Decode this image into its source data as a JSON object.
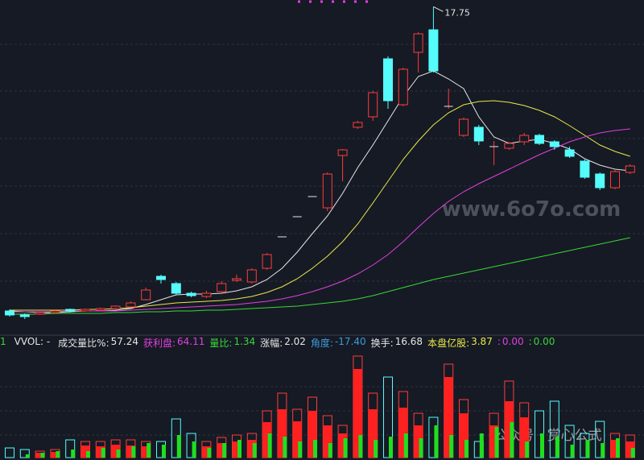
{
  "chart_data": [
    {
      "type": "candlestick",
      "ylim": [
        6,
        18
      ],
      "up_color": "#ff3c3c",
      "down_color": "#54fcfc",
      "open": [
        6.42,
        6.27,
        6.3,
        6.36,
        6.48,
        6.42,
        6.45,
        6.51,
        6.57,
        6.84,
        7.71,
        7.44,
        7.08,
        6.96,
        7.14,
        7.56,
        7.5,
        8.01,
        9.18,
        9.93,
        10.68,
        10.26,
        12.21,
        13.26,
        13.65,
        15.81,
        14.1,
        16.05,
        16.89,
        14.04,
        12.96,
        13.26,
        12.54,
        12.48,
        12.72,
        12.96,
        12.72,
        12.42,
        12.0,
        11.52,
        11.01,
        11.58
      ],
      "close": [
        6.27,
        6.21,
        6.36,
        6.42,
        6.42,
        6.48,
        6.51,
        6.6,
        6.72,
        7.2,
        7.59,
        7.08,
        6.99,
        7.08,
        7.44,
        7.62,
        7.95,
        8.52,
        9.18,
        9.93,
        10.68,
        11.52,
        12.42,
        13.44,
        14.55,
        14.25,
        15.42,
        16.74,
        15.36,
        14.04,
        13.56,
        12.75,
        12.54,
        12.66,
        12.96,
        12.66,
        12.54,
        12.18,
        11.4,
        11.01,
        11.61,
        11.82
      ],
      "high": [
        6.48,
        6.33,
        6.39,
        6.45,
        6.51,
        6.51,
        6.54,
        6.63,
        6.78,
        7.29,
        7.77,
        7.5,
        7.14,
        7.17,
        7.53,
        7.77,
        8.01,
        8.58,
        9.18,
        9.93,
        10.68,
        11.58,
        12.45,
        13.5,
        14.61,
        15.9,
        15.48,
        16.8,
        17.75,
        14.7,
        13.62,
        13.35,
        12.75,
        12.72,
        13.05,
        13.02,
        12.78,
        12.54,
        12.06,
        11.58,
        11.67,
        11.88
      ],
      "low": [
        6.21,
        6.12,
        6.27,
        6.33,
        6.36,
        6.39,
        6.42,
        6.48,
        6.54,
        6.81,
        7.44,
        7.02,
        6.93,
        6.9,
        7.08,
        7.5,
        7.44,
        7.95,
        9.18,
        9.93,
        10.68,
        10.14,
        11.25,
        13.2,
        13.5,
        13.95,
        14.04,
        15.3,
        15.3,
        13.95,
        12.9,
        12.6,
        11.85,
        12.42,
        12.6,
        12.6,
        12.42,
        12.12,
        11.34,
        10.92,
        10.95,
        11.52
      ],
      "series": [
        {
          "color": "#e6e6e6",
          "values": [
            6.42,
            6.39,
            6.36,
            6.36,
            6.39,
            6.42,
            6.42,
            6.45,
            6.51,
            6.66,
            6.84,
            7.02,
            7.05,
            7.05,
            7.08,
            7.17,
            7.32,
            7.59,
            8.01,
            8.61,
            9.3,
            9.96,
            10.8,
            11.76,
            12.6,
            13.5,
            14.4,
            15.15,
            15.36,
            15.06,
            14.7,
            13.65,
            12.9,
            12.66,
            12.75,
            12.81,
            12.66,
            12.45,
            12.09,
            11.85,
            11.7,
            11.64
          ]
        },
        {
          "color": "#e8e84a",
          "values": [
            6.45,
            6.45,
            6.45,
            6.45,
            6.45,
            6.48,
            6.48,
            6.51,
            6.54,
            6.6,
            6.66,
            6.72,
            6.75,
            6.78,
            6.81,
            6.87,
            6.96,
            7.11,
            7.32,
            7.62,
            8.01,
            8.46,
            9.0,
            9.66,
            10.44,
            11.25,
            12.06,
            12.75,
            13.35,
            13.8,
            14.1,
            14.22,
            14.25,
            14.19,
            14.07,
            13.89,
            13.65,
            13.32,
            12.96,
            12.6,
            12.36,
            12.18
          ]
        },
        {
          "color": "#e040e0",
          "values": [
            6.39,
            6.39,
            6.39,
            6.39,
            6.42,
            6.42,
            6.42,
            6.42,
            6.45,
            6.48,
            6.51,
            6.54,
            6.57,
            6.6,
            6.63,
            6.66,
            6.72,
            6.78,
            6.87,
            6.99,
            7.14,
            7.32,
            7.53,
            7.8,
            8.13,
            8.52,
            9.0,
            9.54,
            10.05,
            10.5,
            10.86,
            11.16,
            11.43,
            11.7,
            11.97,
            12.24,
            12.48,
            12.72,
            12.9,
            13.05,
            13.14,
            13.2
          ]
        },
        {
          "color": "#38d838",
          "values": [
            6.3,
            6.3,
            6.3,
            6.33,
            6.33,
            6.33,
            6.33,
            6.36,
            6.36,
            6.39,
            6.39,
            6.42,
            6.42,
            6.45,
            6.45,
            6.48,
            6.51,
            6.54,
            6.57,
            6.6,
            6.66,
            6.72,
            6.78,
            6.87,
            6.99,
            7.14,
            7.29,
            7.44,
            7.59,
            7.71,
            7.83,
            7.95,
            8.07,
            8.19,
            8.31,
            8.43,
            8.55,
            8.67,
            8.79,
            8.91,
            9.03,
            9.15
          ]
        }
      ],
      "watermark": "www.6o7o.com"
    },
    {
      "type": "volume",
      "ylim": [
        0,
        130
      ],
      "header": {
        "prefix": "1",
        "name": "VVOL: -",
        "items": [
          {
            "label": "成交量比%:",
            "value": "57.24",
            "color": "#e6e6e6"
          },
          {
            "label": "获利盘:",
            "value": "64.11",
            "color": "#e040e0"
          },
          {
            "label": "量比:",
            "value": "1.34",
            "color": "#38d838"
          },
          {
            "label": "涨幅:",
            "value": "2.02",
            "color": "#e6e6e6"
          },
          {
            "label": "角度:",
            "value": "-17.40",
            "color": "#3c9cdc"
          },
          {
            "label": "换手:",
            "value": "16.68",
            "color": "#e6e6e6"
          },
          {
            "label": "本盘亿股:",
            "value": "3.87",
            "color": "#e8e84a"
          },
          {
            "label": ":",
            "value": "0.00",
            "color": "#e040e0"
          },
          {
            "label": ":",
            "value": "0.00",
            "color": "#38d838"
          }
        ]
      },
      "series": [
        {
          "values": [
            12,
            10,
            8,
            10,
            22,
            20,
            20,
            22,
            22,
            20,
            20,
            48,
            30,
            20,
            25,
            28,
            30,
            58,
            80,
            60,
            75,
            52,
            40,
            126,
            80,
            100,
            82,
            55,
            50,
            116,
            72,
            20,
            55,
            95,
            68,
            58,
            70,
            40,
            30,
            45,
            30,
            28
          ]
        },
        {
          "color": "#ff2020",
          "values": [
            null,
            null,
            6,
            7,
            null,
            15,
            14,
            16,
            15,
            14,
            null,
            null,
            null,
            14,
            18,
            20,
            22,
            44,
            60,
            45,
            58,
            40,
            30,
            110,
            60,
            null,
            62,
            40,
            null,
            100,
            55,
            null,
            40,
            70,
            50,
            null,
            null,
            null,
            null,
            null,
            22,
            20
          ]
        },
        {
          "color": "#1ee01e",
          "values": [
            0,
            4,
            6,
            8,
            10,
            8,
            12,
            10,
            14,
            18,
            16,
            28,
            20,
            12,
            18,
            22,
            18,
            30,
            26,
            20,
            22,
            18,
            24,
            28,
            22,
            26,
            30,
            24,
            40,
            28,
            22,
            30,
            38,
            44,
            20,
            30,
            26,
            16,
            22,
            18,
            24,
            12
          ]
        }
      ],
      "watermark": "公众号 · 赏心公式"
    }
  ]
}
